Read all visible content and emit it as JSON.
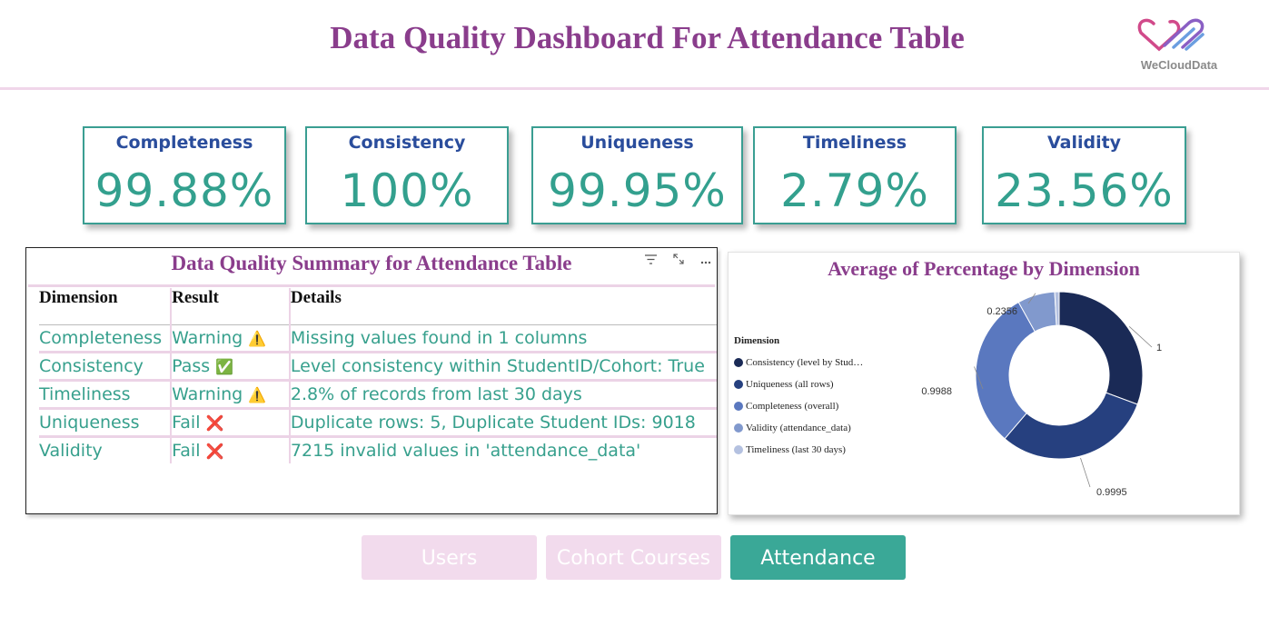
{
  "header": {
    "title": "Data Quality Dashboard For Attendance Table",
    "logo_text": "WeCloudData"
  },
  "kpis": [
    {
      "label": "Completeness",
      "value": "99.88%"
    },
    {
      "label": "Consistency",
      "value": "100%"
    },
    {
      "label": "Uniqueness",
      "value": "99.95%"
    },
    {
      "label": "Timeliness",
      "value": "2.79%"
    },
    {
      "label": "Validity",
      "value": "23.56%"
    }
  ],
  "summary": {
    "title": "Data Quality Summary for Attendance Table",
    "tools": [
      "filter-icon",
      "focus-mode-icon",
      "more-options-icon"
    ],
    "columns": [
      "Dimension",
      "Result",
      "Details"
    ],
    "rows": [
      {
        "dimension": "Completeness",
        "result": "Warning",
        "result_icon": "⚠️",
        "details": "Missing values found in 1 columns"
      },
      {
        "dimension": "Consistency",
        "result": "Pass",
        "result_icon": "✅",
        "details": "Level consistency within StudentID/Cohort: True"
      },
      {
        "dimension": "Timeliness",
        "result": "Warning",
        "result_icon": "⚠️",
        "details": "2.8% of records from last 30 days"
      },
      {
        "dimension": "Uniqueness",
        "result": "Fail",
        "result_icon": "❌",
        "details": "Duplicate rows: 5, Duplicate Student IDs: 9018"
      },
      {
        "dimension": "Validity",
        "result": "Fail",
        "result_icon": "❌",
        "details": "7215 invalid values in 'attendance_data'"
      }
    ]
  },
  "chart_data": {
    "type": "pie",
    "title": "Average of Percentage by Dimension",
    "legend_title": "Dimension",
    "legend_position": "left",
    "categories": [
      "Consistency (level by Stud…",
      "Uniqueness (all rows)",
      "Completeness (overall)",
      "Validity (attendance_data)",
      "Timeliness (last 30 days)"
    ],
    "values": [
      1,
      0.9995,
      0.9988,
      0.2356,
      0.0279
    ],
    "data_labels": [
      "1",
      "0.9995",
      "0.9988",
      "0.2356",
      ""
    ],
    "colors": [
      "#1a2a56",
      "#26407f",
      "#5a78bf",
      "#8199cd",
      "#b4c1e0"
    ],
    "donut": true
  },
  "nav": [
    {
      "label": "Users",
      "active": false
    },
    {
      "label": "Cohort Courses",
      "active": false
    },
    {
      "label": "Attendance",
      "active": true
    }
  ],
  "colors": {
    "title": "#8a3d8c",
    "kpi_label": "#2a4d9c",
    "kpi_value": "#33a08e",
    "accent": "#3aa897",
    "inactive_nav": "#f2dbed"
  }
}
